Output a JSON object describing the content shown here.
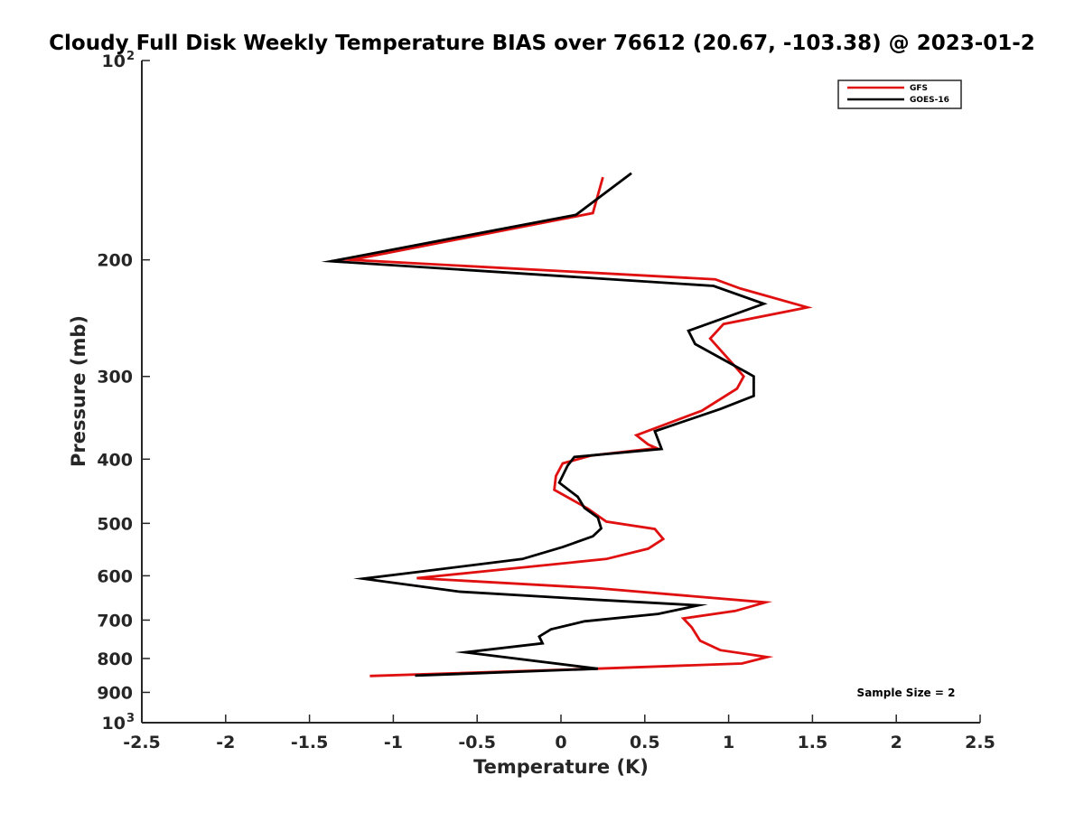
{
  "chart_data": {
    "type": "line",
    "title": "Cloudy Full Disk Weekly Temperature BIAS over 76612 (20.67, -103.38) @ 2023-01-2",
    "xlabel": "Temperature (K)",
    "ylabel": "Pressure (mb)",
    "xlim": [
      -2.5,
      2.5
    ],
    "ylim": [
      100,
      1000
    ],
    "y_scale": "log",
    "y_reversed": true,
    "grid": false,
    "legend_position": "top-right",
    "x_ticks": [
      {
        "value": -2.5,
        "label": "-2.5"
      },
      {
        "value": -2,
        "label": "-2"
      },
      {
        "value": -1.5,
        "label": "-1.5"
      },
      {
        "value": -1,
        "label": "-1"
      },
      {
        "value": -0.5,
        "label": "-0.5"
      },
      {
        "value": 0,
        "label": "0"
      },
      {
        "value": 0.5,
        "label": "0.5"
      },
      {
        "value": 1,
        "label": "1"
      },
      {
        "value": 1.5,
        "label": "1.5"
      },
      {
        "value": 2,
        "label": "2"
      },
      {
        "value": 2.5,
        "label": "2.5"
      }
    ],
    "y_ticks": [
      {
        "value": 100,
        "label": "10",
        "exponent": "2"
      },
      {
        "value": 200,
        "label": "200"
      },
      {
        "value": 300,
        "label": "300"
      },
      {
        "value": 400,
        "label": "400"
      },
      {
        "value": 500,
        "label": "500"
      },
      {
        "value": 600,
        "label": "600"
      },
      {
        "value": 700,
        "label": "700"
      },
      {
        "value": 800,
        "label": "800"
      },
      {
        "value": 900,
        "label": "900"
      },
      {
        "value": 1000,
        "label": "10",
        "exponent": "3"
      }
    ],
    "annotation": "Sample Size = 2",
    "series": [
      {
        "name": "GFS",
        "color": "#e01010",
        "points": [
          [
            0.25,
            150
          ],
          [
            0.19,
            170
          ],
          [
            -1.25,
            200
          ],
          [
            0.92,
            214
          ],
          [
            1.07,
            221
          ],
          [
            1.47,
            236
          ],
          [
            0.97,
            250
          ],
          [
            0.89,
            263
          ],
          [
            1.04,
            290
          ],
          [
            1.09,
            300
          ],
          [
            1.05,
            313
          ],
          [
            0.84,
            338
          ],
          [
            0.45,
            368
          ],
          [
            0.52,
            380
          ],
          [
            0.57,
            385
          ],
          [
            0.18,
            395
          ],
          [
            0.01,
            406
          ],
          [
            -0.03,
            424
          ],
          [
            -0.04,
            445
          ],
          [
            0.16,
            475
          ],
          [
            0.27,
            497
          ],
          [
            0.56,
            510
          ],
          [
            0.61,
            528
          ],
          [
            0.52,
            546
          ],
          [
            0.27,
            566
          ],
          [
            -0.86,
            605
          ],
          [
            0.2,
            626
          ],
          [
            1.22,
            658
          ],
          [
            1.04,
            678
          ],
          [
            0.73,
            696
          ],
          [
            0.78,
            718
          ],
          [
            0.83,
            752
          ],
          [
            0.95,
            777
          ],
          [
            1.23,
            796
          ],
          [
            1.08,
            814
          ],
          [
            0.2,
            829
          ],
          [
            -1.14,
            850
          ]
        ]
      },
      {
        "name": "GOES-16",
        "color": "#000000",
        "points": [
          [
            0.42,
            148
          ],
          [
            0.09,
            171
          ],
          [
            -1.37,
            201
          ],
          [
            0.91,
            219
          ],
          [
            1.21,
            233
          ],
          [
            0.76,
            256
          ],
          [
            0.8,
            268
          ],
          [
            1.11,
            296
          ],
          [
            1.15,
            300
          ],
          [
            1.15,
            321
          ],
          [
            0.95,
            336
          ],
          [
            0.56,
            363
          ],
          [
            0.6,
            386
          ],
          [
            0.08,
            397
          ],
          [
            0.04,
            409
          ],
          [
            -0.01,
            434
          ],
          [
            0.1,
            456
          ],
          [
            0.14,
            474
          ],
          [
            0.22,
            490
          ],
          [
            0.24,
            509
          ],
          [
            0.19,
            523
          ],
          [
            0.01,
            543
          ],
          [
            -0.23,
            566
          ],
          [
            -0.83,
            591
          ],
          [
            -1.18,
            606
          ],
          [
            -0.61,
            634
          ],
          [
            0.2,
            652
          ],
          [
            0.82,
            665
          ],
          [
            0.58,
            685
          ],
          [
            0.14,
            703
          ],
          [
            -0.06,
            723
          ],
          [
            -0.13,
            741
          ],
          [
            -0.11,
            759
          ],
          [
            -0.57,
            783
          ],
          [
            0.22,
            829
          ],
          [
            -0.87,
            849
          ]
        ]
      }
    ]
  }
}
